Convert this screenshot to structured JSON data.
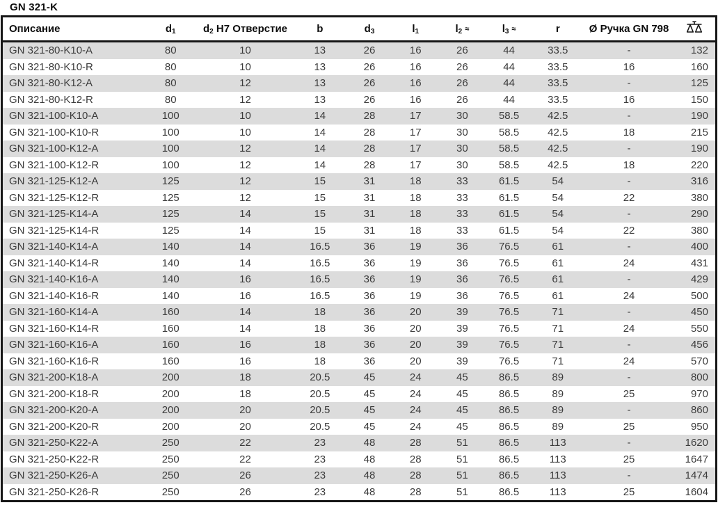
{
  "title": "GN 321-K",
  "colors": {
    "row_stripe": "#dcdcdc",
    "table_border": "#161616",
    "body_text": "#3c3c3c",
    "header_text": "#0d0d0d"
  },
  "table": {
    "columns": [
      {
        "key": "desc",
        "label": "Описание",
        "align": "left"
      },
      {
        "key": "d1",
        "base": "d",
        "sub": "1",
        "align": "center"
      },
      {
        "key": "d2",
        "base": "d",
        "sub": "2",
        "rest": " H7 Отверстие",
        "align": "center"
      },
      {
        "key": "b",
        "label": "b",
        "align": "center"
      },
      {
        "key": "d3",
        "base": "d",
        "sub": "3",
        "align": "center"
      },
      {
        "key": "l1",
        "base": "l",
        "sub": "1",
        "align": "center"
      },
      {
        "key": "l2",
        "base": "l",
        "sub": "2",
        "approx": "≈",
        "align": "center"
      },
      {
        "key": "l3",
        "base": "l",
        "sub": "3",
        "approx": "≈",
        "align": "center"
      },
      {
        "key": "r",
        "label": "r",
        "align": "center"
      },
      {
        "key": "handle",
        "label": "Ø Ручка GN 798",
        "align": "center"
      },
      {
        "key": "weight",
        "icon": "scale-icon",
        "align": "right"
      }
    ],
    "rows": [
      [
        "GN 321-80-K10-A",
        "80",
        "10",
        "13",
        "26",
        "16",
        "26",
        "44",
        "33.5",
        "-",
        "132"
      ],
      [
        "GN 321-80-K10-R",
        "80",
        "10",
        "13",
        "26",
        "16",
        "26",
        "44",
        "33.5",
        "16",
        "160"
      ],
      [
        "GN 321-80-K12-A",
        "80",
        "12",
        "13",
        "26",
        "16",
        "26",
        "44",
        "33.5",
        "-",
        "125"
      ],
      [
        "GN 321-80-K12-R",
        "80",
        "12",
        "13",
        "26",
        "16",
        "26",
        "44",
        "33.5",
        "16",
        "150"
      ],
      [
        "GN 321-100-K10-A",
        "100",
        "10",
        "14",
        "28",
        "17",
        "30",
        "58.5",
        "42.5",
        "-",
        "190"
      ],
      [
        "GN 321-100-K10-R",
        "100",
        "10",
        "14",
        "28",
        "17",
        "30",
        "58.5",
        "42.5",
        "18",
        "215"
      ],
      [
        "GN 321-100-K12-A",
        "100",
        "12",
        "14",
        "28",
        "17",
        "30",
        "58.5",
        "42.5",
        "-",
        "190"
      ],
      [
        "GN 321-100-K12-R",
        "100",
        "12",
        "14",
        "28",
        "17",
        "30",
        "58.5",
        "42.5",
        "18",
        "220"
      ],
      [
        "GN 321-125-K12-A",
        "125",
        "12",
        "15",
        "31",
        "18",
        "33",
        "61.5",
        "54",
        "-",
        "316"
      ],
      [
        "GN 321-125-K12-R",
        "125",
        "12",
        "15",
        "31",
        "18",
        "33",
        "61.5",
        "54",
        "22",
        "380"
      ],
      [
        "GN 321-125-K14-A",
        "125",
        "14",
        "15",
        "31",
        "18",
        "33",
        "61.5",
        "54",
        "-",
        "290"
      ],
      [
        "GN 321-125-K14-R",
        "125",
        "14",
        "15",
        "31",
        "18",
        "33",
        "61.5",
        "54",
        "22",
        "380"
      ],
      [
        "GN 321-140-K14-A",
        "140",
        "14",
        "16.5",
        "36",
        "19",
        "36",
        "76.5",
        "61",
        "-",
        "400"
      ],
      [
        "GN 321-140-K14-R",
        "140",
        "14",
        "16.5",
        "36",
        "19",
        "36",
        "76.5",
        "61",
        "24",
        "431"
      ],
      [
        "GN 321-140-K16-A",
        "140",
        "16",
        "16.5",
        "36",
        "19",
        "36",
        "76.5",
        "61",
        "-",
        "429"
      ],
      [
        "GN 321-140-K16-R",
        "140",
        "16",
        "16.5",
        "36",
        "19",
        "36",
        "76.5",
        "61",
        "24",
        "500"
      ],
      [
        "GN 321-160-K14-A",
        "160",
        "14",
        "18",
        "36",
        "20",
        "39",
        "76.5",
        "71",
        "-",
        "450"
      ],
      [
        "GN 321-160-K14-R",
        "160",
        "14",
        "18",
        "36",
        "20",
        "39",
        "76.5",
        "71",
        "24",
        "550"
      ],
      [
        "GN 321-160-K16-A",
        "160",
        "16",
        "18",
        "36",
        "20",
        "39",
        "76.5",
        "71",
        "-",
        "456"
      ],
      [
        "GN 321-160-K16-R",
        "160",
        "16",
        "18",
        "36",
        "20",
        "39",
        "76.5",
        "71",
        "24",
        "570"
      ],
      [
        "GN 321-200-K18-A",
        "200",
        "18",
        "20.5",
        "45",
        "24",
        "45",
        "86.5",
        "89",
        "-",
        "800"
      ],
      [
        "GN 321-200-K18-R",
        "200",
        "18",
        "20.5",
        "45",
        "24",
        "45",
        "86.5",
        "89",
        "25",
        "970"
      ],
      [
        "GN 321-200-K20-A",
        "200",
        "20",
        "20.5",
        "45",
        "24",
        "45",
        "86.5",
        "89",
        "-",
        "860"
      ],
      [
        "GN 321-200-K20-R",
        "200",
        "20",
        "20.5",
        "45",
        "24",
        "45",
        "86.5",
        "89",
        "25",
        "950"
      ],
      [
        "GN 321-250-K22-A",
        "250",
        "22",
        "23",
        "48",
        "28",
        "51",
        "86.5",
        "113",
        "-",
        "1620"
      ],
      [
        "GN 321-250-K22-R",
        "250",
        "22",
        "23",
        "48",
        "28",
        "51",
        "86.5",
        "113",
        "25",
        "1647"
      ],
      [
        "GN 321-250-K26-A",
        "250",
        "26",
        "23",
        "48",
        "28",
        "51",
        "86.5",
        "113",
        "-",
        "1474"
      ],
      [
        "GN 321-250-K26-R",
        "250",
        "26",
        "23",
        "48",
        "28",
        "51",
        "86.5",
        "113",
        "25",
        "1604"
      ]
    ]
  }
}
